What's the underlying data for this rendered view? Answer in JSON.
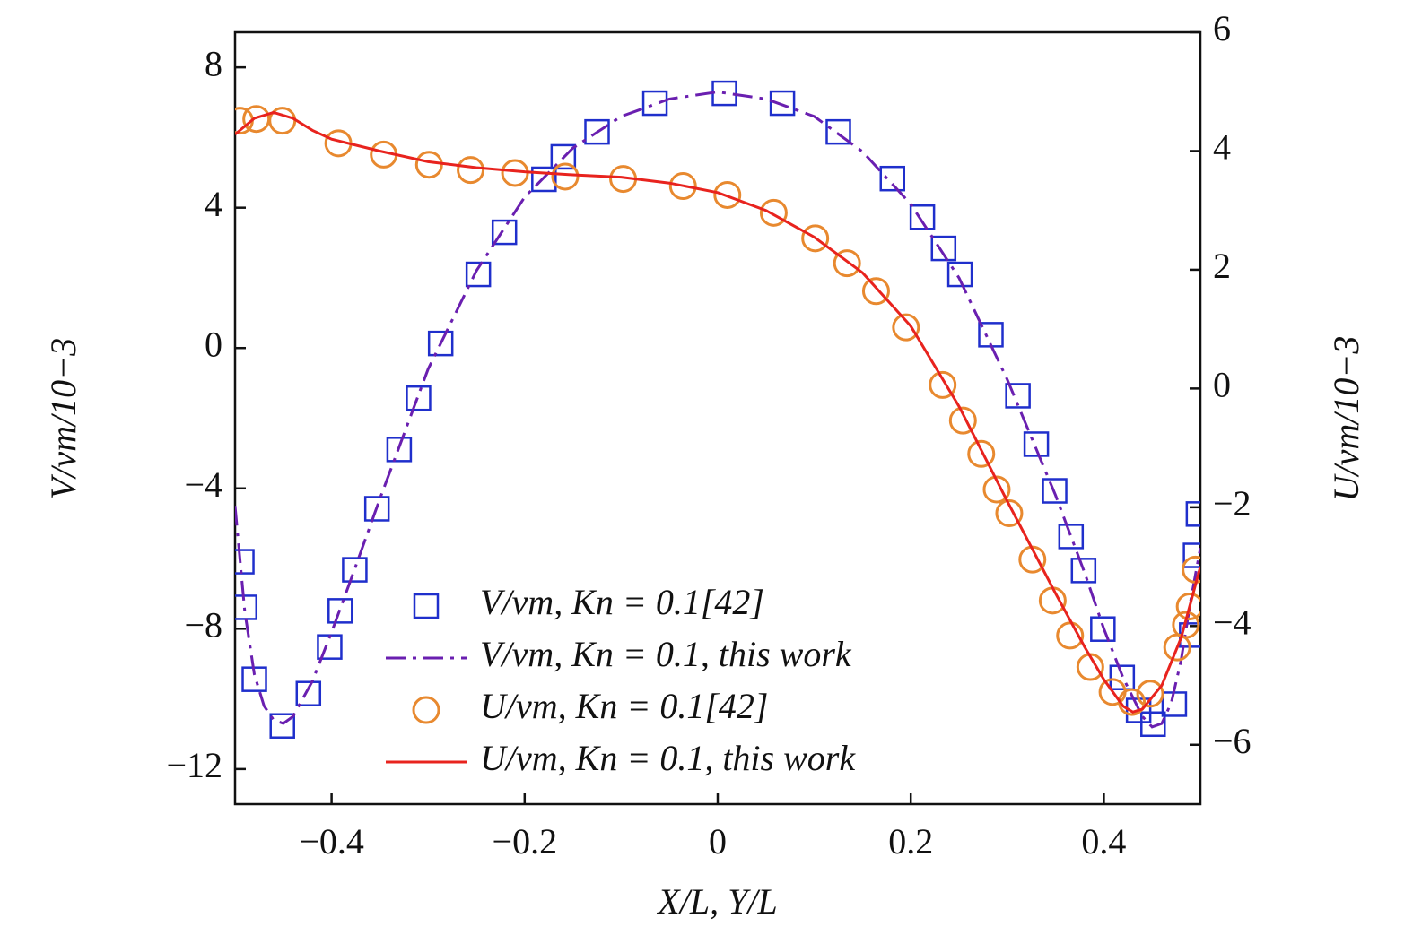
{
  "chart_data": {
    "type": "line",
    "xlabel": "X/L, Y/L",
    "ylabel": "V/vm/10−3",
    "y2label": "U/vm/10−3",
    "xlim": [
      -0.5,
      0.5
    ],
    "ylim": [
      -13,
      9
    ],
    "y2lim": [
      -7,
      6
    ],
    "xticks": [
      {
        "value": -0.4,
        "label": "−0.4"
      },
      {
        "value": -0.2,
        "label": "−0.2"
      },
      0,
      0.2,
      0.4
    ],
    "yticks": [
      {
        "value": -12,
        "label": "−12"
      },
      {
        "value": -8,
        "label": "−8"
      },
      {
        "value": -4,
        "label": "−4"
      },
      0,
      4,
      8
    ],
    "y2ticks": [
      {
        "value": -6,
        "label": "−6"
      },
      {
        "value": -4,
        "label": "−4"
      },
      {
        "value": -2,
        "label": "−2"
      },
      0,
      2,
      4,
      6
    ],
    "legend": "lower center",
    "series": [
      {
        "name": "V/vm, Kn = 0.1[42]",
        "color": "#1f2fcc",
        "marker": "square",
        "axis": "y",
        "x": [
          -0.493,
          -0.49,
          -0.48,
          -0.451,
          -0.424,
          -0.402,
          -0.391,
          -0.376,
          -0.353,
          -0.33,
          -0.31,
          -0.287,
          -0.248,
          -0.221,
          -0.18,
          -0.16,
          -0.125,
          -0.065,
          0.007,
          0.067,
          0.125,
          0.181,
          0.212,
          0.234,
          0.251,
          0.283,
          0.311,
          0.33,
          0.349,
          0.366,
          0.379,
          0.399,
          0.419,
          0.436,
          0.451,
          0.473,
          0.491,
          0.495,
          0.498
        ],
        "values": [
          -6.09,
          -7.39,
          -9.44,
          -10.77,
          -9.85,
          -8.52,
          -7.49,
          -6.32,
          -4.58,
          -2.89,
          -1.43,
          0.13,
          2.1,
          3.3,
          4.81,
          5.45,
          6.16,
          6.98,
          7.26,
          6.98,
          6.16,
          4.83,
          3.73,
          2.84,
          2.1,
          0.38,
          -1.36,
          -2.74,
          -4.07,
          -5.37,
          -6.34,
          -8.01,
          -9.39,
          -10.33,
          -10.72,
          -10.15,
          -8.18,
          -5.91,
          -4.73
        ]
      },
      {
        "name": "V/vm, Kn = 0.1, this work",
        "color": "#6a1fb0",
        "dash": "dashdot",
        "axis": "y",
        "x": [
          -0.5,
          -0.49,
          -0.48,
          -0.47,
          -0.46,
          -0.45,
          -0.44,
          -0.42,
          -0.4,
          -0.38,
          -0.35,
          -0.3,
          -0.25,
          -0.2,
          -0.15,
          -0.1,
          -0.05,
          0,
          0.05,
          0.1,
          0.15,
          0.2,
          0.25,
          0.3,
          0.35,
          0.38,
          0.4,
          0.42,
          0.44,
          0.45,
          0.46,
          0.47,
          0.48,
          0.49,
          0.5
        ],
        "values": [
          -4.5,
          -7.5,
          -9.3,
          -10.2,
          -10.6,
          -10.7,
          -10.5,
          -9.5,
          -8.1,
          -6.6,
          -4.3,
          -0.6,
          2.2,
          4.3,
          5.7,
          6.6,
          7.1,
          7.3,
          7.1,
          6.6,
          5.6,
          4.1,
          2.0,
          -0.9,
          -4.2,
          -6.4,
          -8.0,
          -9.4,
          -10.5,
          -10.8,
          -10.7,
          -10.1,
          -8.9,
          -7.2,
          -5.7
        ]
      },
      {
        "name": "U/vm, Kn = 0.1[42]",
        "color": "#e8892f",
        "marker": "circle",
        "axis": "y2",
        "x": [
          -0.495,
          -0.478,
          -0.451,
          -0.393,
          -0.346,
          -0.299,
          -0.256,
          -0.21,
          -0.158,
          -0.098,
          -0.036,
          0.01,
          0.058,
          0.101,
          0.134,
          0.164,
          0.195,
          0.233,
          0.254,
          0.273,
          0.289,
          0.302,
          0.326,
          0.347,
          0.365,
          0.386,
          0.409,
          0.429,
          0.448,
          0.476,
          0.485,
          0.489,
          0.495
        ],
        "values": [
          4.51,
          4.54,
          4.51,
          4.13,
          3.94,
          3.77,
          3.68,
          3.63,
          3.57,
          3.53,
          3.41,
          3.26,
          2.96,
          2.53,
          2.11,
          1.64,
          1.03,
          0.06,
          -0.54,
          -1.1,
          -1.7,
          -2.1,
          -2.88,
          -3.57,
          -4.16,
          -4.69,
          -5.11,
          -5.28,
          -5.14,
          -4.36,
          -3.98,
          -3.67,
          -3.05
        ]
      },
      {
        "name": "U/vm, Kn = 0.1, this work",
        "color": "#e8231e",
        "dash": "solid",
        "axis": "y2",
        "x": [
          -0.5,
          -0.48,
          -0.46,
          -0.44,
          -0.42,
          -0.4,
          -0.35,
          -0.3,
          -0.25,
          -0.2,
          -0.15,
          -0.1,
          -0.05,
          0,
          0.05,
          0.1,
          0.15,
          0.2,
          0.25,
          0.3,
          0.35,
          0.38,
          0.4,
          0.42,
          0.43,
          0.44,
          0.46,
          0.48,
          0.5
        ],
        "values": [
          4.28,
          4.55,
          4.65,
          4.55,
          4.35,
          4.2,
          4.0,
          3.82,
          3.72,
          3.65,
          3.6,
          3.56,
          3.46,
          3.3,
          3.0,
          2.55,
          1.95,
          1.05,
          -0.3,
          -1.9,
          -3.45,
          -4.35,
          -4.9,
          -5.35,
          -5.45,
          -5.4,
          -5.0,
          -4.2,
          -3.0
        ]
      }
    ]
  }
}
